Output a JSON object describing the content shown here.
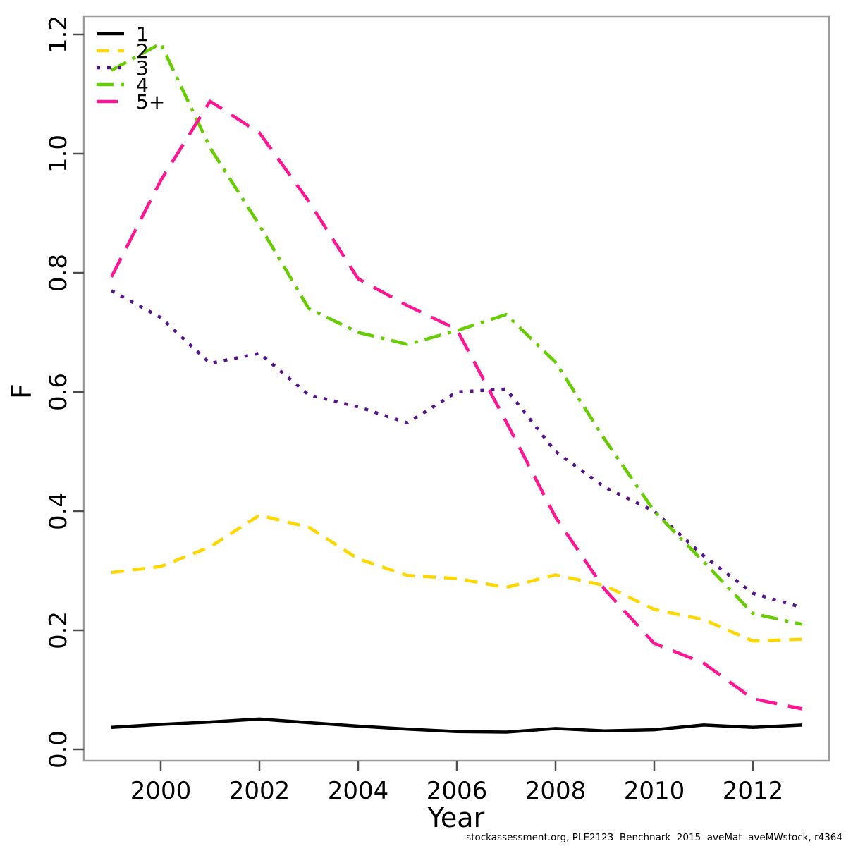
{
  "footer": {
    "text": "stockassessment.org, PLE2123  Benchnark  2015  aveMat  aveMWstock, r4364"
  },
  "axis": {
    "box_color": "#9b9b9b",
    "tick_color": "#4d4d4d",
    "label_color": "#000000"
  },
  "chart_data": {
    "type": "line",
    "title": "",
    "xlabel": "Year",
    "ylabel": "F",
    "xlim": [
      1999,
      2013
    ],
    "ylim": [
      0.0,
      1.2
    ],
    "grid": false,
    "legend_position": "top-left",
    "x": [
      1999,
      2000,
      2001,
      2002,
      2003,
      2004,
      2005,
      2006,
      2007,
      2008,
      2009,
      2010,
      2011,
      2012,
      2013
    ],
    "xticks": [
      2000,
      2002,
      2004,
      2006,
      2008,
      2010,
      2012
    ],
    "yticks": [
      0.0,
      0.2,
      0.4,
      0.6,
      0.8,
      1.0,
      1.2
    ],
    "series": [
      {
        "name": "1",
        "color": "#000000",
        "linestyle": "solid",
        "values": [
          0.037,
          0.042,
          0.046,
          0.051,
          0.045,
          0.039,
          0.034,
          0.03,
          0.029,
          0.035,
          0.031,
          0.033,
          0.041,
          0.037,
          0.041
        ]
      },
      {
        "name": "2",
        "color": "#FFD700",
        "linestyle": "dashed",
        "values": [
          0.297,
          0.307,
          0.34,
          0.393,
          0.373,
          0.32,
          0.292,
          0.287,
          0.272,
          0.293,
          0.275,
          0.235,
          0.218,
          0.182,
          0.185
        ]
      },
      {
        "name": "3",
        "color": "#54128C",
        "linestyle": "dotted",
        "values": [
          0.77,
          0.725,
          0.648,
          0.665,
          0.595,
          0.575,
          0.548,
          0.6,
          0.605,
          0.5,
          0.44,
          0.4,
          0.325,
          0.262,
          0.238
        ]
      },
      {
        "name": "4",
        "color": "#66CD00",
        "linestyle": "dotdash",
        "values": [
          1.14,
          1.185,
          1.01,
          0.88,
          0.74,
          0.7,
          0.68,
          0.703,
          0.73,
          0.65,
          0.52,
          0.4,
          0.315,
          0.228,
          0.21
        ]
      },
      {
        "name": "5+",
        "color": "#FF1493",
        "linestyle": "longdash",
        "values": [
          0.793,
          0.955,
          1.088,
          1.035,
          0.92,
          0.79,
          0.745,
          0.705,
          0.55,
          0.39,
          0.268,
          0.178,
          0.145,
          0.085,
          0.068
        ]
      }
    ]
  }
}
